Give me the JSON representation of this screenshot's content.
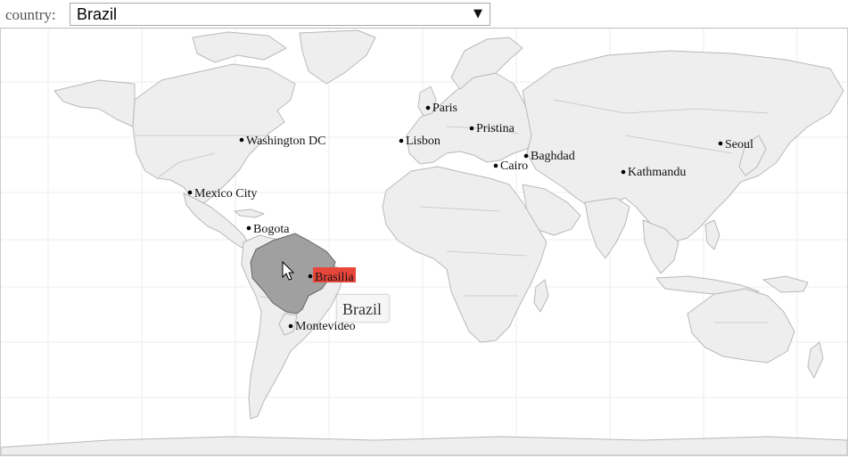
{
  "filter": {
    "label": "country:",
    "selected": "Brazil"
  },
  "highlight": {
    "country": "Brazil",
    "fill": "#a0a0a0",
    "capital_highlight": "#e8463b"
  },
  "tooltip": {
    "text": "Brazil"
  },
  "colors": {
    "land": "#eeeeee",
    "border": "#b9b9b9",
    "grid": "#ececec",
    "ocean": "#ffffff"
  },
  "cities": [
    {
      "name": "Washington DC"
    },
    {
      "name": "Mexico City"
    },
    {
      "name": "Bogota"
    },
    {
      "name": "Brasilia",
      "highlighted": true
    },
    {
      "name": "Montevideo"
    },
    {
      "name": "Paris"
    },
    {
      "name": "Lisbon"
    },
    {
      "name": "Pristina"
    },
    {
      "name": "Cairo"
    },
    {
      "name": "Baghdad"
    },
    {
      "name": "Kathmandu"
    },
    {
      "name": "Seoul"
    }
  ]
}
